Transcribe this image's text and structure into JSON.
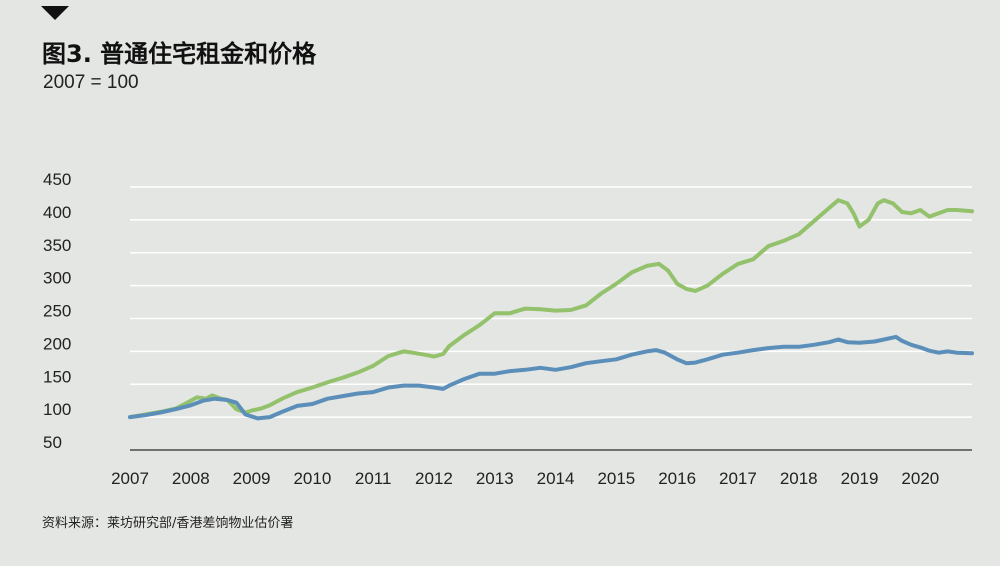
{
  "header": {
    "title": "图3. 普通住宅租金和价格",
    "subtitle": "2007 = 100"
  },
  "footer": {
    "source": "资料来源：莱坊研究部/香港差饷物业估价署"
  },
  "colors": {
    "rent_line": "#93c16c",
    "price_line": "#5b8fba",
    "grid": "#ffffff",
    "background": "#e4e6e3"
  },
  "chart_data": {
    "type": "line",
    "title": "图3. 普通住宅租金和价格",
    "subtitle": "2007 = 100",
    "xlabel": "",
    "ylabel": "",
    "xlim": [
      2007,
      2020.85
    ],
    "ylim": [
      50,
      450
    ],
    "x_ticks": [
      "2007",
      "2008",
      "2009",
      "2010",
      "2011",
      "2012",
      "2013",
      "2014",
      "2015",
      "2016",
      "2017",
      "2018",
      "2019",
      "2020"
    ],
    "y_ticks": [
      450,
      400,
      350,
      300,
      250,
      200,
      150,
      100,
      50
    ],
    "grid": true,
    "legend": "none",
    "series": [
      {
        "color": "#93c16c",
        "x": [
          2007,
          2007.25,
          2007.5,
          2007.75,
          2007.9,
          2008.1,
          2008.25,
          2008.35,
          2008.5,
          2008.6,
          2008.75,
          2008.9,
          2009,
          2009.15,
          2009.3,
          2009.5,
          2009.75,
          2010,
          2010.25,
          2010.5,
          2010.75,
          2011,
          2011.25,
          2011.5,
          2011.65,
          2011.9,
          2012,
          2012.15,
          2012.25,
          2012.5,
          2012.75,
          2013,
          2013.25,
          2013.5,
          2013.75,
          2014,
          2014.25,
          2014.5,
          2014.75,
          2015,
          2015.25,
          2015.5,
          2015.7,
          2015.85,
          2016,
          2016.15,
          2016.3,
          2016.5,
          2016.75,
          2017,
          2017.25,
          2017.5,
          2017.75,
          2018,
          2018.25,
          2018.5,
          2018.65,
          2018.8,
          2018.9,
          2019,
          2019.15,
          2019.3,
          2019.4,
          2019.55,
          2019.7,
          2019.85,
          2020,
          2020.15,
          2020.3,
          2020.45,
          2020.6,
          2020.85
        ],
        "y": [
          100,
          104,
          108,
          113,
          120,
          130,
          128,
          133,
          128,
          126,
          112,
          107,
          110,
          113,
          118,
          128,
          138,
          145,
          153,
          160,
          168,
          178,
          193,
          200,
          198,
          194,
          192,
          196,
          208,
          225,
          240,
          258,
          258,
          265,
          264,
          262,
          263,
          270,
          288,
          303,
          320,
          330,
          333,
          323,
          303,
          295,
          292,
          300,
          318,
          333,
          340,
          360,
          368,
          378,
          398,
          418,
          430,
          425,
          410,
          390,
          400,
          425,
          430,
          425,
          412,
          410,
          415,
          405,
          410,
          415,
          415,
          413
        ]
      },
      {
        "color": "#5b8fba",
        "x": [
          2007,
          2007.25,
          2007.5,
          2007.75,
          2008,
          2008.2,
          2008.4,
          2008.6,
          2008.75,
          2008.9,
          2009.1,
          2009.3,
          2009.5,
          2009.75,
          2010,
          2010.25,
          2010.5,
          2010.75,
          2011,
          2011.25,
          2011.5,
          2011.75,
          2012,
          2012.15,
          2012.25,
          2012.5,
          2012.75,
          2013,
          2013.25,
          2013.5,
          2013.75,
          2014,
          2014.25,
          2014.5,
          2014.75,
          2015,
          2015.25,
          2015.5,
          2015.65,
          2015.8,
          2016,
          2016.15,
          2016.3,
          2016.5,
          2016.75,
          2017,
          2017.25,
          2017.5,
          2017.75,
          2018,
          2018.25,
          2018.5,
          2018.65,
          2018.8,
          2019,
          2019.25,
          2019.5,
          2019.6,
          2019.7,
          2019.85,
          2020,
          2020.15,
          2020.3,
          2020.45,
          2020.6,
          2020.85
        ],
        "y": [
          100,
          103,
          107,
          112,
          118,
          125,
          128,
          126,
          122,
          104,
          98,
          100,
          108,
          117,
          120,
          128,
          132,
          136,
          138,
          145,
          148,
          148,
          145,
          143,
          148,
          158,
          166,
          166,
          170,
          172,
          175,
          172,
          176,
          182,
          185,
          188,
          195,
          200,
          202,
          198,
          188,
          182,
          183,
          188,
          195,
          198,
          202,
          205,
          207,
          207,
          210,
          214,
          218,
          214,
          213,
          215,
          220,
          222,
          216,
          210,
          206,
          201,
          198,
          200,
          198,
          197
        ]
      }
    ]
  }
}
